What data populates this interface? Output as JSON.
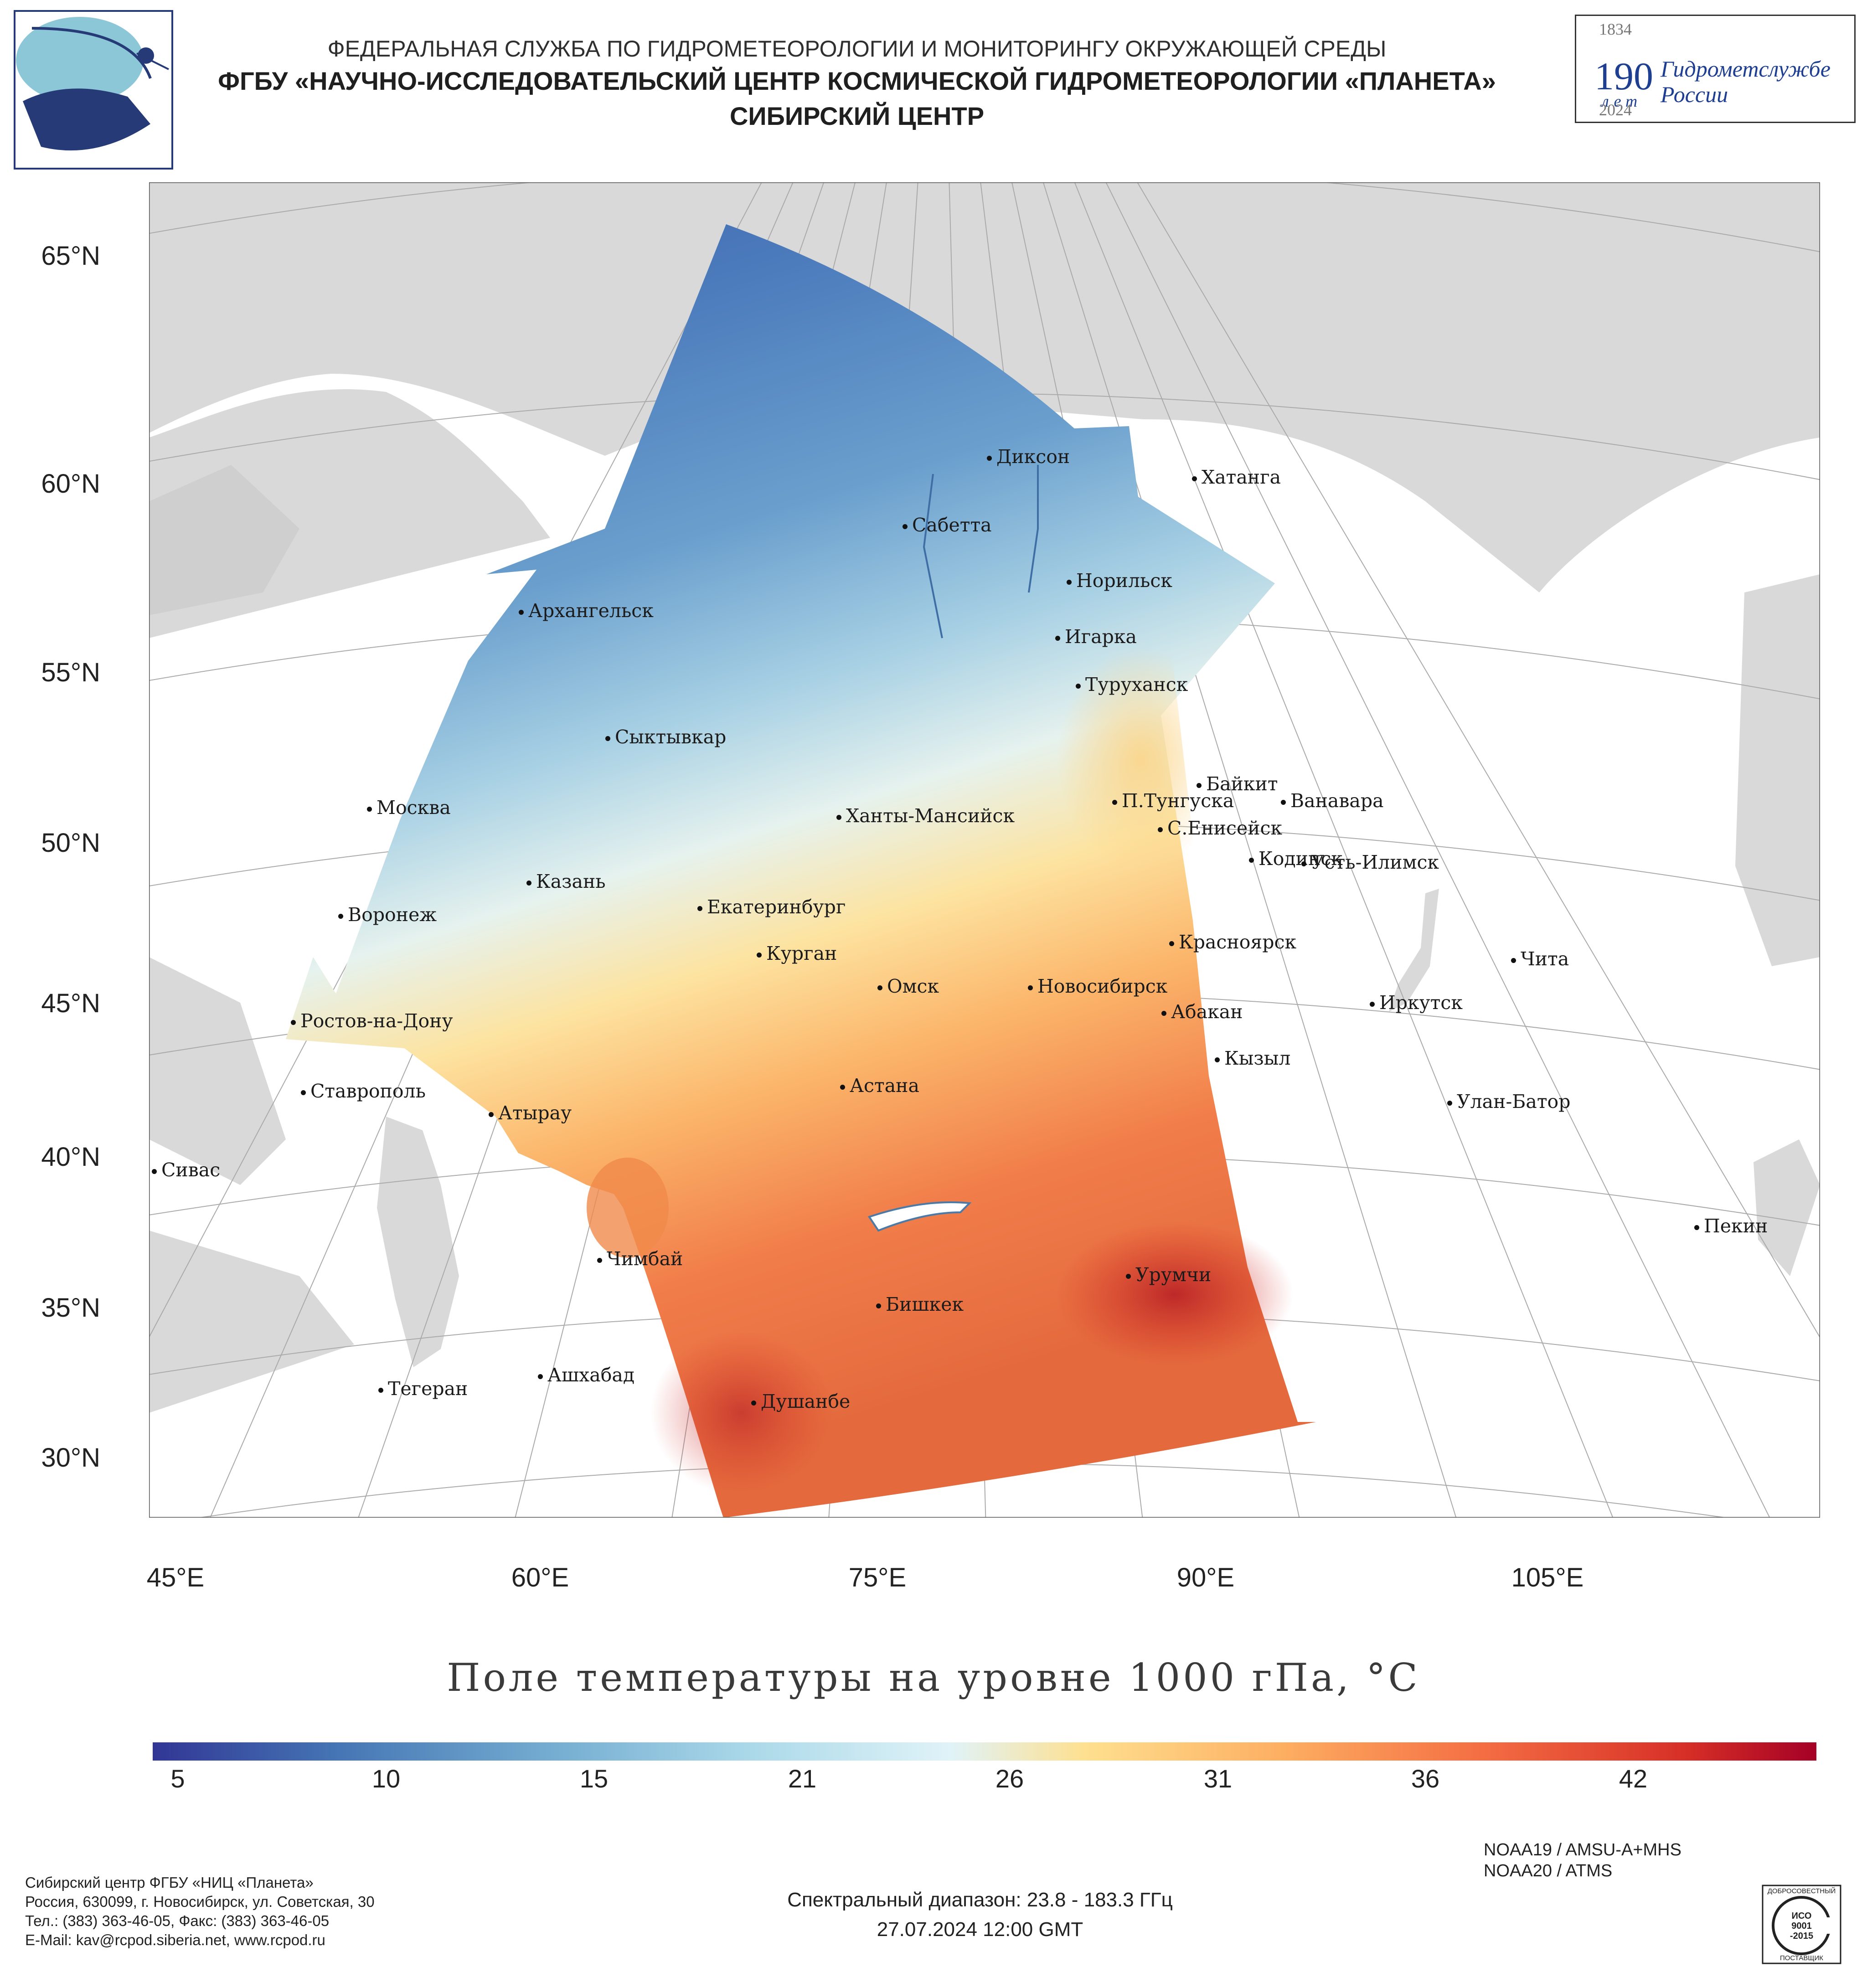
{
  "header": {
    "line1": "ФЕДЕРАЛЬНАЯ СЛУЖБА ПО ГИДРОМЕТЕОРОЛОГИИ И МОНИТОРИНГУ ОКРУЖАЮЩЕЙ СРЕДЫ",
    "line2": "ФГБУ «НАУЧНО-ИССЛЕДОВАТЕЛЬСКИЙ ЦЕНТР КОСМИЧЕСКОЙ ГИДРОМЕТЕОРОЛОГИИ «ПЛАНЕТА»",
    "line3": "СИБИРСКИЙ ЦЕНТР"
  },
  "anniversary": {
    "year_start": "1834",
    "number": "190",
    "let": "лет",
    "name_line1": "Гидрометслужбе",
    "name_line2": "России",
    "year_end": "2024"
  },
  "map": {
    "lat_labels": [
      "65°N",
      "60°N",
      "55°N",
      "50°N",
      "45°N",
      "40°N",
      "35°N",
      "30°N"
    ],
    "lon_labels": [
      "45°E",
      "60°E",
      "75°E",
      "90°E",
      "105°E"
    ],
    "cities": [
      "Диксон",
      "Хатанга",
      "Сабетта",
      "Норильск",
      "Архангельск",
      "Игарка",
      "Туруханск",
      "Сыктывкар",
      "Байкит",
      "Москва",
      "П.Тунгуска",
      "Ванавара",
      "Ханты-Мансийск",
      "С.Енисейск",
      "Кодинск",
      "Усть-Илимск",
      "Казань",
      "Екатеринбург",
      "Воронеж",
      "Красноярск",
      "Курган",
      "Чита",
      "Омск",
      "Новосибирск",
      "Иркутск",
      "Ростов-на-Дону",
      "Абакан",
      "Кызыл",
      "Ставрополь",
      "Астана",
      "Улан-Батор",
      "Атырау",
      "Сивас",
      "Пекин",
      "Чимбай",
      "Урумчи",
      "Бишкек",
      "Ашхабад",
      "Тегеран",
      "Душанбе"
    ],
    "colors": {
      "land": "#d9d9d9",
      "water": "#ffffff",
      "grid": "#aaaaaa",
      "border": "#ffffff"
    }
  },
  "title": "Поле температуры на уровне 1000 гПа, °C",
  "colorbar": {
    "ticks": [
      "5",
      "10",
      "15",
      "21",
      "26",
      "31",
      "36",
      "42"
    ],
    "colors": [
      "#313695",
      "#4575b4",
      "#74add1",
      "#abd9e9",
      "#e0f3f8",
      "#fee090",
      "#fdae61",
      "#f46d43",
      "#d73027",
      "#a50026"
    ]
  },
  "footer": {
    "org": "Сибирский центр ФГБУ «НИЦ «Планета»",
    "address": "Россия, 630099, г. Новосибирск, ул. Советская, 30",
    "phone": "Тел.: (383) 363-46-05, Факс: (383) 363-46-05",
    "email": "E-Mail: kav@rcpod.siberia.net, www.rcpod.ru",
    "spectral": "Спектральный диапазон: 23.8 - 183.3 ГГц",
    "datetime": "27.07.2024 12:00 GMT",
    "sat1": "NOAA19 / AMSU-A+MHS",
    "sat2": "NOAA20 / ATMS",
    "iso_top": "ДОБРОСОВЕСТНЫЙ",
    "iso_mid1": "ИСО",
    "iso_mid2": "9001",
    "iso_mid3": "-2015",
    "iso_bottom": "ПОСТАВЩИК"
  }
}
